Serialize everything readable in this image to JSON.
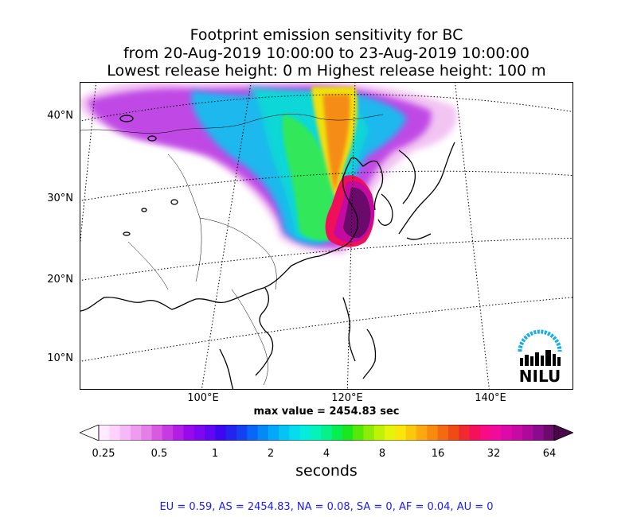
{
  "title": {
    "line1": "Footprint emission sensitivity for BC",
    "line2": "from 20-Aug-2019 10:00:00 to 23-Aug-2019 10:00:00",
    "line3": "Lowest release height: 0 m      Highest release height: 100 m"
  },
  "map": {
    "lat_labels": [
      "40°N",
      "30°N",
      "20°N",
      "10°N"
    ],
    "lon_labels": [
      "100°E",
      "120°E",
      "140°E"
    ],
    "max_value_text": "max value = 2454.83 sec",
    "logo_text": "NILU"
  },
  "colorbar": {
    "tick_labels": [
      "0.25",
      "0.5",
      "1",
      "2",
      "4",
      "8",
      "16",
      "32",
      "64"
    ],
    "unit": "seconds",
    "colors": [
      "#ffeaff",
      "#ffd2ff",
      "#f7b8f7",
      "#ef9cef",
      "#e57fe8",
      "#d85ae2",
      "#c53ae3",
      "#b31ee6",
      "#9a08ec",
      "#7f06f2",
      "#5f07f3",
      "#3d08f0",
      "#2424ee",
      "#1440f2",
      "#0966f6",
      "#0688f7",
      "#03a8f8",
      "#04c4f4",
      "#05dcee",
      "#06ecdc",
      "#05f2b8",
      "#05f28a",
      "#06ee52",
      "#19e81c",
      "#57e80a",
      "#8fec05",
      "#bff206",
      "#e6f40a",
      "#fae60a",
      "#fcc80c",
      "#fca80e",
      "#f98a10",
      "#f46a13",
      "#f04a15",
      "#f02a30",
      "#f4105a",
      "#f70c85",
      "#f00aa0",
      "#dc0aa8",
      "#c80aa5",
      "#ad0a9c",
      "#8c0a8c",
      "#6e0a6e"
    ],
    "over_color": "#4a084a",
    "under_color": "#ffffff"
  },
  "stats_text": "EU = 0.59,  AS = 2454.83,  NA = 0.08,  SA = 0,  AF = 0.04,  AU = 0"
}
